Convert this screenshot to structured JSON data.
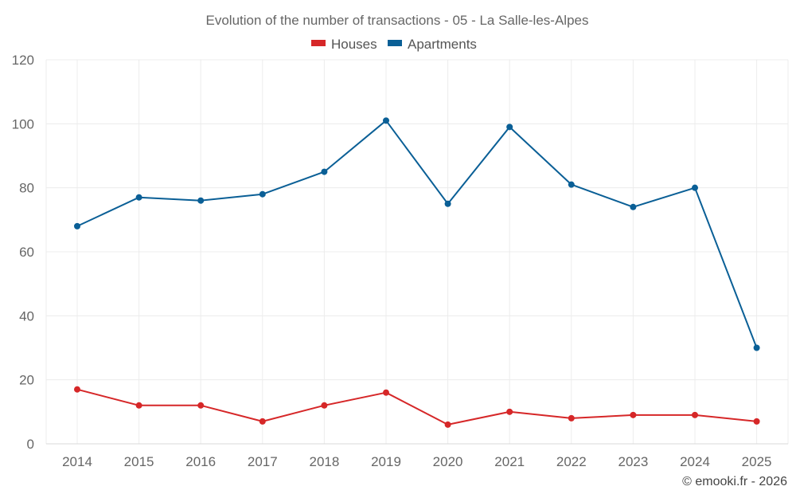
{
  "chart_data": {
    "type": "line",
    "title": "Evolution of the number of transactions - 05 - La Salle-les-Alpes",
    "categories": [
      "2014",
      "2015",
      "2016",
      "2017",
      "2018",
      "2019",
      "2020",
      "2021",
      "2022",
      "2023",
      "2024",
      "2025"
    ],
    "series": [
      {
        "name": "Houses",
        "color": "#d62728",
        "values": [
          17,
          12,
          12,
          7,
          12,
          16,
          6,
          10,
          8,
          9,
          9,
          7
        ]
      },
      {
        "name": "Apartments",
        "color": "#0a5f96",
        "values": [
          68,
          77,
          76,
          78,
          85,
          101,
          75,
          99,
          81,
          74,
          80,
          30
        ]
      }
    ],
    "ylim": [
      0,
      120
    ],
    "yticks": [
      0,
      20,
      40,
      60,
      80,
      100,
      120
    ],
    "xlabel": "",
    "ylabel": "",
    "grid": true,
    "legend_position": "top-center"
  },
  "credit": "© emooki.fr - 2026"
}
